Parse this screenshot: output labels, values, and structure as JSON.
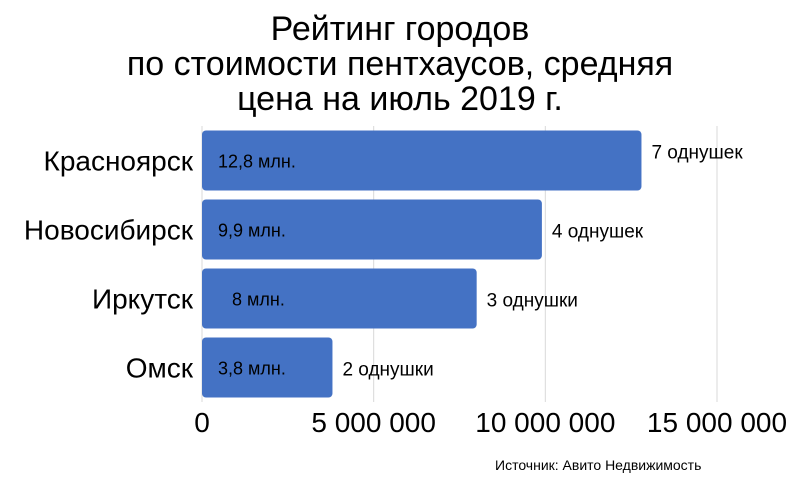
{
  "chart_data": {
    "type": "bar",
    "orientation": "horizontal",
    "title_lines": [
      "Рейтинг городов",
      "по стоимости пентхаусов, средняя",
      "цена на июль 2019 г."
    ],
    "categories": [
      "Красноярск",
      "Новосибирск",
      "Иркутск",
      "Омск"
    ],
    "values": [
      12800000,
      9900000,
      8000000,
      3800000
    ],
    "value_labels": [
      "12,8 млн.",
      "9,9 млн.",
      "8 млн.",
      "3,8 млн."
    ],
    "annotations": [
      "7 однушек",
      "4 однушек",
      "3 однушки",
      "2 однушки"
    ],
    "xlim": [
      0,
      15000000
    ],
    "x_ticks": [
      0,
      5000000,
      10000000,
      15000000
    ],
    "x_tick_labels": [
      "0",
      "5 000 000",
      "10 000 000",
      "15 000 000"
    ],
    "grid": true,
    "bar_color": "#4472c4",
    "xlabel": "",
    "ylabel": ""
  },
  "source": "Источник: Авито Недвижимость"
}
